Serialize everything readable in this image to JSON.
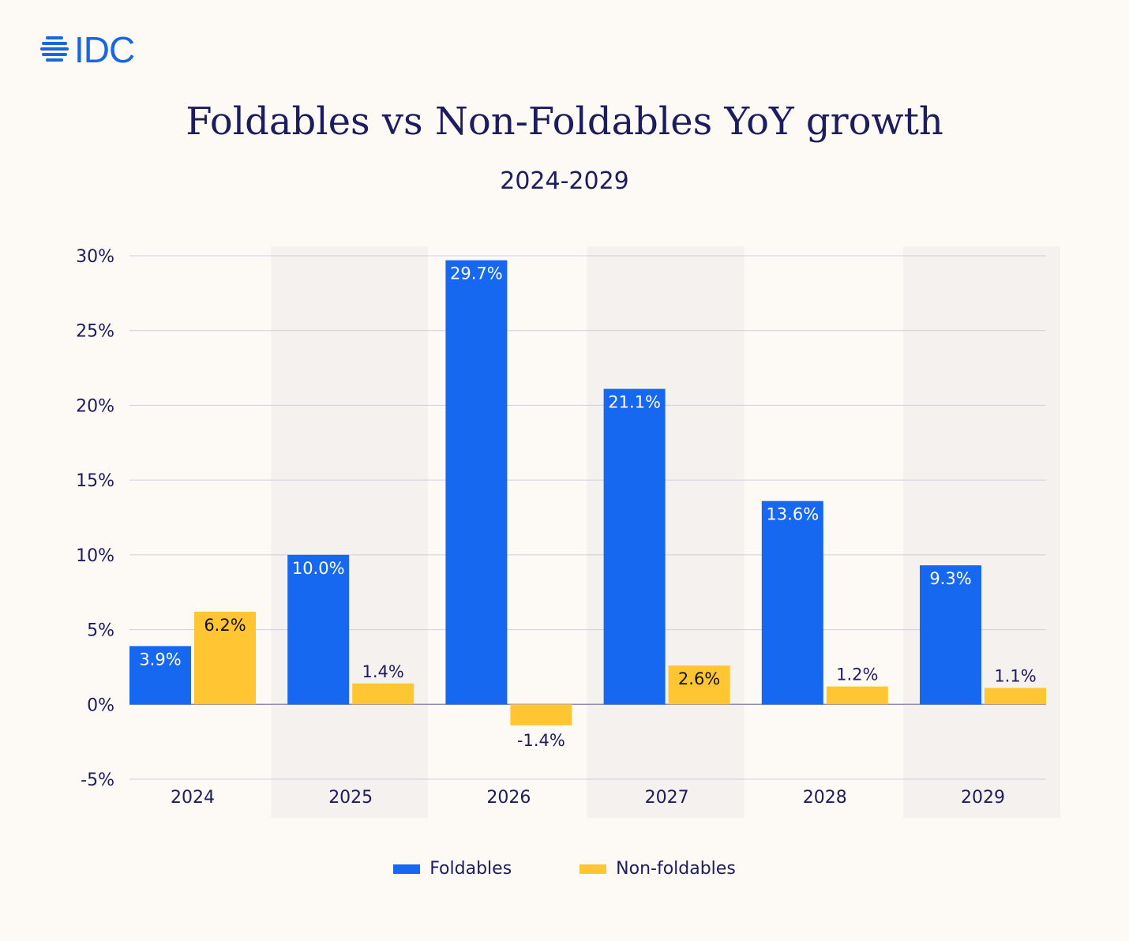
{
  "logo": {
    "text": "IDC"
  },
  "colors": {
    "foldables": "#1768f0",
    "non_foldables": "#ffc533",
    "background": "#fdfaf6",
    "band": "#f5f1ee",
    "text": "#1c1c5e",
    "grid": "#cfcde3"
  },
  "chart_data": {
    "type": "bar",
    "title": "Foldables vs Non-Foldables YoY growth",
    "subtitle": "2024-2029",
    "categories": [
      "2024",
      "2025",
      "2026",
      "2027",
      "2028",
      "2029"
    ],
    "series": [
      {
        "name": "Foldables",
        "values": [
          3.9,
          10.0,
          29.7,
          21.1,
          13.6,
          9.3
        ],
        "labels": [
          "3.9%",
          "10.0%",
          "29.7%",
          "21.1%",
          "13.6%",
          "9.3%"
        ]
      },
      {
        "name": "Non-foldables",
        "values": [
          6.2,
          1.4,
          -1.4,
          2.6,
          1.2,
          1.1
        ],
        "labels": [
          "6.2%",
          "1.4%",
          "-1.4%",
          "2.6%",
          "1.2%",
          "1.1%"
        ]
      }
    ],
    "ylim": [
      -5,
      30
    ],
    "yticks": [
      "-5%",
      "0%",
      "5%",
      "10%",
      "15%",
      "20%",
      "25%",
      "30%"
    ],
    "grid": true,
    "legend": "bottom-center",
    "alternating_bands": true
  }
}
